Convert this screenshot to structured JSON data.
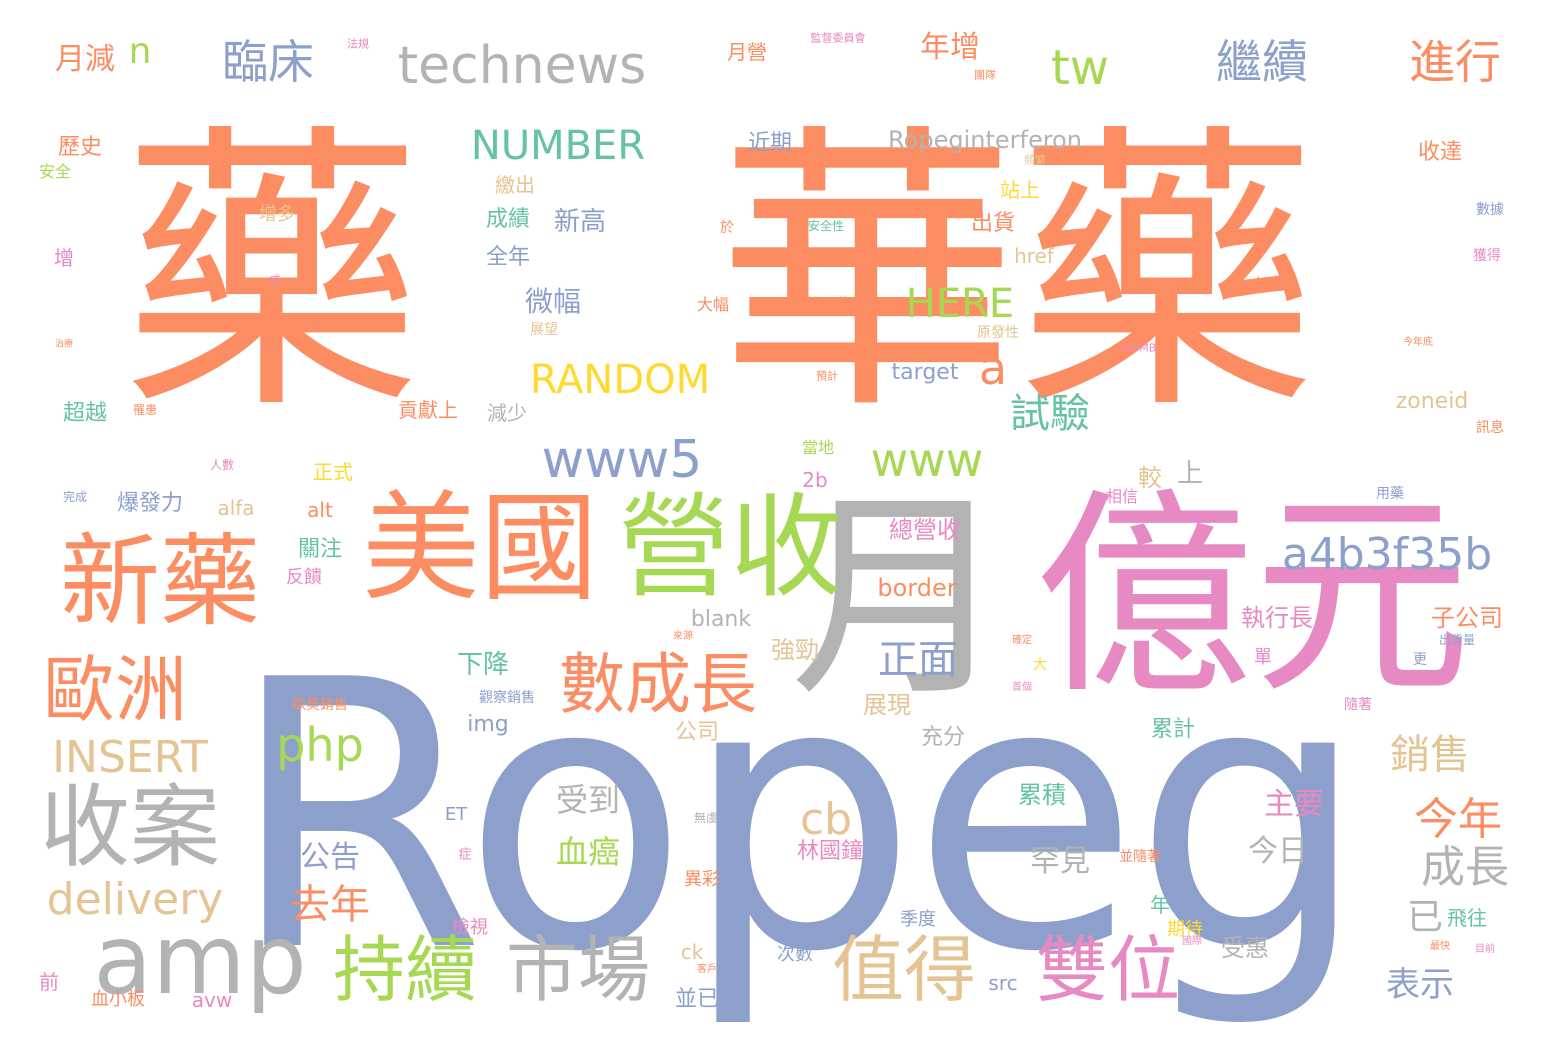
{
  "palette": {
    "orange": "#fc8d62",
    "blue": "#8da0cb",
    "pink": "#e78ac3",
    "green": "#a6d854",
    "yellow": "#ffd92f",
    "tan": "#e5c494",
    "grey": "#b3b3b3",
    "teal": "#66c2a5"
  },
  "words": [
    {
      "text": "藥"
    },
    {
      "text": "華藥"
    },
    {
      "text": "Ropeg"
    },
    {
      "text": "億元"
    },
    {
      "text": "月"
    },
    {
      "text": "美國"
    },
    {
      "text": "營收"
    },
    {
      "text": "新藥"
    },
    {
      "text": "歐洲"
    },
    {
      "text": "收案"
    },
    {
      "text": "amp"
    },
    {
      "text": "數成長"
    },
    {
      "text": "持續"
    },
    {
      "text": "市場"
    },
    {
      "text": "值得"
    },
    {
      "text": "雙位"
    },
    {
      "text": "a4b3f35b"
    },
    {
      "text": "www5"
    },
    {
      "text": "technews"
    },
    {
      "text": "tw"
    },
    {
      "text": "臨床"
    },
    {
      "text": "繼續"
    },
    {
      "text": "進行"
    },
    {
      "text": "NUMBER"
    },
    {
      "text": "HERE"
    },
    {
      "text": "RANDOM"
    },
    {
      "text": "www"
    },
    {
      "text": "a"
    },
    {
      "text": "試驗"
    },
    {
      "text": "正面"
    },
    {
      "text": "php"
    },
    {
      "text": "INSERT"
    },
    {
      "text": "delivery"
    },
    {
      "text": "cb"
    },
    {
      "text": "今年"
    },
    {
      "text": "成長"
    },
    {
      "text": "銷售"
    },
    {
      "text": "去年"
    },
    {
      "text": "表示"
    },
    {
      "text": "已"
    },
    {
      "text": "年增"
    },
    {
      "text": "月減"
    },
    {
      "text": "n"
    },
    {
      "text": "Ropeginterferon"
    },
    {
      "text": "微幅"
    },
    {
      "text": "新高"
    },
    {
      "text": "受到"
    },
    {
      "text": "血癌"
    },
    {
      "text": "公告"
    },
    {
      "text": "罕見"
    },
    {
      "text": "今日"
    },
    {
      "text": "主要"
    },
    {
      "text": "子公司"
    },
    {
      "text": "執行長"
    },
    {
      "text": "林國鐘"
    },
    {
      "text": "總營收"
    },
    {
      "text": "border"
    },
    {
      "text": "blank"
    },
    {
      "text": "下降"
    },
    {
      "text": "展現"
    },
    {
      "text": "強勁"
    },
    {
      "text": "充分"
    },
    {
      "text": "累計"
    },
    {
      "text": "累積"
    },
    {
      "text": "img"
    },
    {
      "text": "公司"
    },
    {
      "text": "target"
    },
    {
      "text": "zoneid"
    },
    {
      "text": "href"
    },
    {
      "text": "近期"
    },
    {
      "text": "收達"
    },
    {
      "text": "歷史"
    },
    {
      "text": "超越"
    },
    {
      "text": "爆發力"
    },
    {
      "text": "alfa"
    },
    {
      "text": "alt"
    },
    {
      "text": "關注"
    },
    {
      "text": "正式"
    },
    {
      "text": "貢獻上"
    },
    {
      "text": "減少"
    },
    {
      "text": "全年"
    },
    {
      "text": "成績"
    },
    {
      "text": "繳出"
    },
    {
      "text": "站上"
    },
    {
      "text": "出貨"
    },
    {
      "text": "月營"
    },
    {
      "text": "上"
    },
    {
      "text": "較"
    },
    {
      "text": "2b"
    },
    {
      "text": "增多"
    },
    {
      "text": "安全"
    },
    {
      "text": "增"
    },
    {
      "text": "前"
    },
    {
      "text": "血小板"
    },
    {
      "text": "avw"
    },
    {
      "text": "ck"
    },
    {
      "text": "並已"
    },
    {
      "text": "次數"
    },
    {
      "text": "src"
    },
    {
      "text": "季度"
    },
    {
      "text": "年"
    },
    {
      "text": "期待"
    },
    {
      "text": "受惠"
    },
    {
      "text": "飛往"
    },
    {
      "text": "異彩"
    },
    {
      "text": "檢視"
    },
    {
      "text": "並隨著"
    },
    {
      "text": "觀察銷售"
    },
    {
      "text": "歐美銷售"
    },
    {
      "text": "反饋"
    },
    {
      "text": "ET"
    },
    {
      "text": "症"
    },
    {
      "text": "無虞"
    },
    {
      "text": "第三期"
    },
    {
      "text": "大幅"
    },
    {
      "text": "展望"
    },
    {
      "text": "於"
    },
    {
      "text": "安全性"
    },
    {
      "text": "力道"
    },
    {
      "text": "原發性"
    },
    {
      "text": "DSMB"
    },
    {
      "text": "預計"
    },
    {
      "text": "當地"
    },
    {
      "text": "相信"
    },
    {
      "text": "用藥"
    },
    {
      "text": "訊息"
    },
    {
      "text": "今年底"
    },
    {
      "text": "數據"
    },
    {
      "text": "獲得"
    },
    {
      "text": "頻繁"
    },
    {
      "text": "團隊"
    },
    {
      "text": "監督委員會"
    },
    {
      "text": "法規"
    },
    {
      "text": "成"
    },
    {
      "text": "更"
    },
    {
      "text": "出貨量"
    },
    {
      "text": "隨著"
    },
    {
      "text": "最快"
    },
    {
      "text": "目前"
    },
    {
      "text": "確定"
    },
    {
      "text": "單"
    },
    {
      "text": "大"
    },
    {
      "text": "首個"
    },
    {
      "text": "來源"
    },
    {
      "text": "國際"
    },
    {
      "text": "客戶"
    },
    {
      "text": "完成"
    },
    {
      "text": "人數"
    },
    {
      "text": "治療"
    },
    {
      "text": "罹患"
    }
  ]
}
